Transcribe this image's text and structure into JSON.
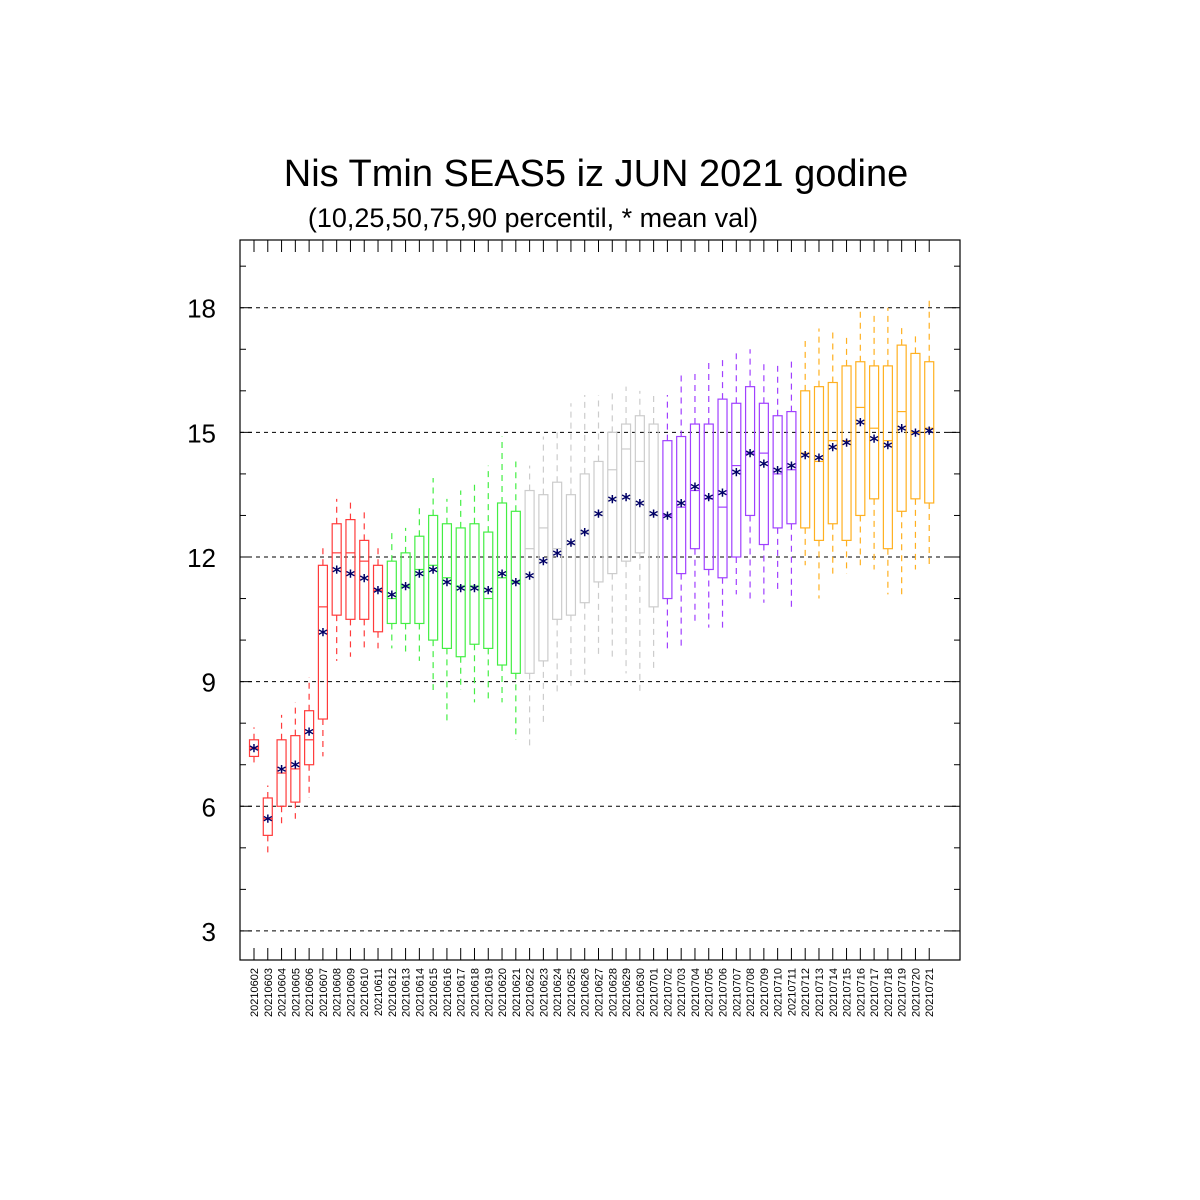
{
  "chart_data": {
    "type": "box",
    "title": "Nis Tmin SEAS5 iz JUN 2021 godine",
    "subtitle": "(10,25,50,75,90 percentil, * mean val)",
    "ylim": [
      3,
      20
    ],
    "yticks": [
      3,
      6,
      9,
      12,
      15,
      18
    ],
    "grid": "dashed horizontal at major y ticks",
    "colors": {
      "red": "#ff3b3b",
      "green": "#44ee44",
      "gray": "#cccccc",
      "purple": "#a040ff",
      "orange": "#ffb020",
      "mean_marker": "#000066"
    },
    "categories": [
      "20210602",
      "20210603",
      "20210604",
      "20210605",
      "20210606",
      "20210607",
      "20210608",
      "20210609",
      "20210610",
      "20210611",
      "20210612",
      "20210613",
      "20210614",
      "20210615",
      "20210616",
      "20210617",
      "20210618",
      "20210619",
      "20210620",
      "20210621",
      "20210622",
      "20210623",
      "20210624",
      "20210625",
      "20210626",
      "20210627",
      "20210628",
      "20210629",
      "20210630",
      "20210701",
      "20210702",
      "20210703",
      "20210704",
      "20210705",
      "20210706",
      "20210707",
      "20210708",
      "20210709",
      "20210710",
      "20210711",
      "20210712",
      "20210713",
      "20210714",
      "20210715",
      "20210716",
      "20210717",
      "20210718",
      "20210719",
      "20210720",
      "20210721"
    ],
    "group_colors": [
      "red",
      "red",
      "red",
      "red",
      "red",
      "red",
      "red",
      "red",
      "red",
      "red",
      "green",
      "green",
      "green",
      "green",
      "green",
      "green",
      "green",
      "green",
      "green",
      "green",
      "gray",
      "gray",
      "gray",
      "gray",
      "gray",
      "gray",
      "gray",
      "gray",
      "gray",
      "gray",
      "purple",
      "purple",
      "purple",
      "purple",
      "purple",
      "purple",
      "purple",
      "purple",
      "purple",
      "purple",
      "orange",
      "orange",
      "orange",
      "orange",
      "orange",
      "orange",
      "orange",
      "orange",
      "orange",
      "orange"
    ],
    "p10": [
      7.0,
      4.8,
      5.5,
      5.7,
      6.2,
      7.2,
      9.5,
      9.6,
      9.8,
      9.8,
      9.8,
      9.7,
      9.5,
      8.8,
      8.0,
      8.8,
      8.5,
      8.5,
      8.5,
      7.6,
      7.4,
      8.0,
      8.7,
      8.9,
      9.0,
      9.6,
      9.6,
      9.2,
      8.7,
      9.3,
      9.8,
      9.8,
      10.4,
      10.3,
      10.3,
      11.1,
      10.9,
      10.9,
      11.2,
      10.7,
      11.8,
      11.0,
      11.6,
      11.6,
      11.8,
      11.7,
      11.1,
      11.1,
      11.7,
      11.8
    ],
    "p25": [
      7.2,
      5.3,
      6.0,
      6.1,
      7.0,
      8.1,
      10.6,
      10.5,
      10.5,
      10.2,
      10.4,
      10.4,
      10.4,
      10.0,
      9.8,
      9.6,
      9.9,
      9.8,
      9.4,
      9.2,
      9.2,
      9.5,
      10.5,
      10.6,
      10.9,
      11.4,
      11.6,
      11.9,
      12.1,
      10.8,
      11.0,
      11.6,
      12.2,
      11.7,
      11.5,
      12.0,
      13.0,
      12.3,
      12.7,
      12.8,
      12.7,
      12.4,
      12.8,
      12.4,
      13.0,
      13.4,
      12.2,
      13.1,
      13.4,
      13.3
    ],
    "p50": [
      7.4,
      5.7,
      6.8,
      6.9,
      7.6,
      10.8,
      12.1,
      12.1,
      11.9,
      11.2,
      11.0,
      11.3,
      11.7,
      11.8,
      11.5,
      11.3,
      11.3,
      11.0,
      11.5,
      11.4,
      12.2,
      12.7,
      12.2,
      12.3,
      12.6,
      13.0,
      14.1,
      14.6,
      14.3,
      13.0,
      13.0,
      13.2,
      13.6,
      13.4,
      13.2,
      14.2,
      14.5,
      14.5,
      14.0,
      14.1,
      14.5,
      14.3,
      14.8,
      14.8,
      15.6,
      15.1,
      14.8,
      15.5,
      15.0,
      15.1
    ],
    "p75": [
      7.6,
      6.2,
      7.6,
      7.7,
      8.3,
      11.8,
      12.8,
      12.9,
      12.4,
      11.8,
      11.9,
      12.1,
      12.5,
      13.0,
      12.8,
      12.7,
      12.8,
      12.6,
      13.3,
      13.1,
      13.6,
      13.5,
      13.8,
      13.5,
      14.0,
      14.3,
      15.0,
      15.2,
      15.4,
      15.2,
      14.8,
      14.9,
      15.2,
      15.2,
      15.8,
      15.7,
      16.1,
      15.7,
      15.4,
      15.5,
      16.0,
      16.1,
      16.2,
      16.6,
      16.7,
      16.6,
      16.6,
      17.1,
      16.9,
      16.7
    ],
    "p90": [
      7.9,
      6.5,
      8.2,
      8.5,
      9.1,
      12.3,
      13.4,
      13.4,
      13.1,
      12.3,
      12.6,
      12.7,
      13.2,
      13.9,
      13.4,
      13.6,
      13.8,
      14.2,
      14.9,
      14.3,
      14.2,
      14.9,
      15.0,
      15.7,
      15.9,
      15.9,
      16.0,
      16.1,
      16.0,
      15.9,
      15.9,
      16.4,
      16.5,
      16.7,
      16.8,
      16.9,
      17.0,
      16.7,
      16.6,
      16.8,
      17.2,
      17.5,
      17.5,
      17.3,
      18.0,
      17.9,
      18.0,
      17.6,
      17.4,
      18.2
    ],
    "mean": [
      7.4,
      5.7,
      6.9,
      7.0,
      7.8,
      10.2,
      11.7,
      11.6,
      11.5,
      11.2,
      11.1,
      11.3,
      11.6,
      11.7,
      11.4,
      11.25,
      11.25,
      11.2,
      11.6,
      11.4,
      11.55,
      11.9,
      12.1,
      12.35,
      12.6,
      13.05,
      13.4,
      13.45,
      13.3,
      13.05,
      13.0,
      13.3,
      13.7,
      13.45,
      13.55,
      14.05,
      14.5,
      14.25,
      14.1,
      14.2,
      14.45,
      14.4,
      14.65,
      14.75,
      15.25,
      14.85,
      14.7,
      15.1,
      15.0,
      15.05
    ]
  }
}
